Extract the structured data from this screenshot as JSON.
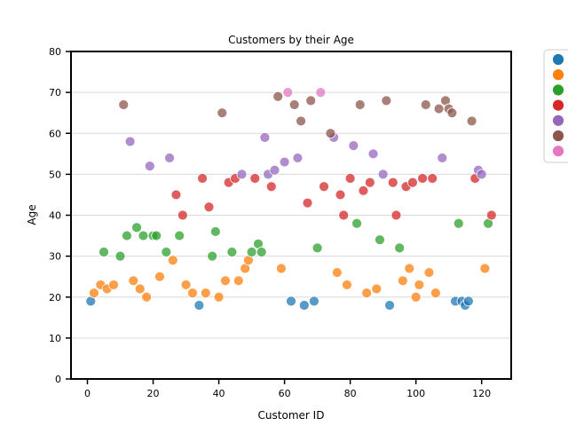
{
  "chart_data": {
    "type": "scatter",
    "title": "Customers by their Age",
    "xlabel": "Customer ID",
    "ylabel": "Age",
    "xlim": [
      -5,
      129
    ],
    "ylim": [
      0,
      80
    ],
    "xticks": [
      0,
      20,
      40,
      60,
      80,
      100,
      120
    ],
    "yticks": [
      0,
      10,
      20,
      30,
      40,
      50,
      60,
      70,
      80
    ],
    "grid": true,
    "legend_position": "outside right",
    "series": [
      {
        "color": "#1f77b4",
        "points": [
          [
            1,
            19
          ],
          [
            34,
            18
          ],
          [
            62,
            19
          ],
          [
            66,
            18
          ],
          [
            69,
            19
          ],
          [
            92,
            18
          ],
          [
            112,
            19
          ],
          [
            114,
            19
          ],
          [
            115,
            18
          ],
          [
            116,
            19
          ]
        ]
      },
      {
        "color": "#ff7f0e",
        "points": [
          [
            2,
            21
          ],
          [
            4,
            23
          ],
          [
            6,
            22
          ],
          [
            8,
            23
          ],
          [
            14,
            24
          ],
          [
            16,
            22
          ],
          [
            18,
            20
          ],
          [
            22,
            25
          ],
          [
            26,
            29
          ],
          [
            30,
            23
          ],
          [
            32,
            21
          ],
          [
            36,
            21
          ],
          [
            40,
            20
          ],
          [
            42,
            24
          ],
          [
            46,
            24
          ],
          [
            48,
            27
          ],
          [
            49,
            29
          ],
          [
            59,
            27
          ],
          [
            76,
            26
          ],
          [
            79,
            23
          ],
          [
            85,
            21
          ],
          [
            88,
            22
          ],
          [
            96,
            24
          ],
          [
            98,
            27
          ],
          [
            100,
            20
          ],
          [
            101,
            23
          ],
          [
            104,
            26
          ],
          [
            106,
            21
          ],
          [
            121,
            27
          ]
        ]
      },
      {
        "color": "#2ca02c",
        "points": [
          [
            5,
            31
          ],
          [
            10,
            30
          ],
          [
            12,
            35
          ],
          [
            15,
            37
          ],
          [
            17,
            35
          ],
          [
            20,
            35
          ],
          [
            21,
            35
          ],
          [
            24,
            31
          ],
          [
            28,
            35
          ],
          [
            38,
            30
          ],
          [
            39,
            36
          ],
          [
            44,
            31
          ],
          [
            50,
            31
          ],
          [
            52,
            33
          ],
          [
            53,
            31
          ],
          [
            70,
            32
          ],
          [
            82,
            38
          ],
          [
            89,
            34
          ],
          [
            95,
            32
          ],
          [
            113,
            38
          ],
          [
            122,
            38
          ]
        ]
      },
      {
        "color": "#d62728",
        "points": [
          [
            27,
            45
          ],
          [
            29,
            40
          ],
          [
            35,
            49
          ],
          [
            37,
            42
          ],
          [
            43,
            48
          ],
          [
            45,
            49
          ],
          [
            51,
            49
          ],
          [
            56,
            47
          ],
          [
            67,
            43
          ],
          [
            72,
            47
          ],
          [
            77,
            45
          ],
          [
            78,
            40
          ],
          [
            80,
            49
          ],
          [
            84,
            46
          ],
          [
            86,
            48
          ],
          [
            93,
            48
          ],
          [
            94,
            40
          ],
          [
            97,
            47
          ],
          [
            99,
            48
          ],
          [
            102,
            49
          ],
          [
            105,
            49
          ],
          [
            118,
            49
          ],
          [
            123,
            40
          ]
        ]
      },
      {
        "color": "#9467bd",
        "points": [
          [
            13,
            58
          ],
          [
            19,
            52
          ],
          [
            25,
            54
          ],
          [
            47,
            50
          ],
          [
            54,
            59
          ],
          [
            55,
            50
          ],
          [
            57,
            51
          ],
          [
            60,
            53
          ],
          [
            64,
            54
          ],
          [
            75,
            59
          ],
          [
            81,
            57
          ],
          [
            87,
            55
          ],
          [
            90,
            50
          ],
          [
            108,
            54
          ],
          [
            119,
            51
          ],
          [
            120,
            50
          ]
        ]
      },
      {
        "color": "#8c564b",
        "points": [
          [
            11,
            67
          ],
          [
            41,
            65
          ],
          [
            58,
            69
          ],
          [
            63,
            67
          ],
          [
            65,
            63
          ],
          [
            68,
            68
          ],
          [
            74,
            60
          ],
          [
            83,
            67
          ],
          [
            91,
            68
          ],
          [
            103,
            67
          ],
          [
            107,
            66
          ],
          [
            109,
            68
          ],
          [
            110,
            66
          ],
          [
            111,
            65
          ],
          [
            117,
            63
          ]
        ]
      },
      {
        "color": "#e377c2",
        "points": [
          [
            61,
            70
          ],
          [
            71,
            70
          ]
        ]
      }
    ]
  }
}
